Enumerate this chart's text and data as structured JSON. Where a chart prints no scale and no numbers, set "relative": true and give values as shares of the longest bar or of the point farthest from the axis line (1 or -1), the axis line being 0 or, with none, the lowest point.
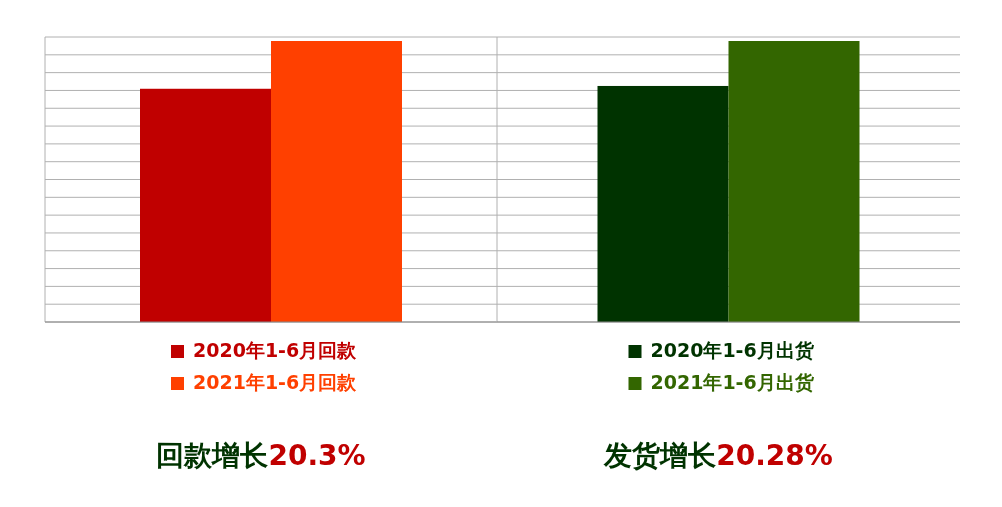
{
  "chart_data": [
    {
      "type": "bar",
      "relative": true,
      "categories": [
        null
      ],
      "grid": true,
      "legend": "bottom",
      "annotations": [
        "回款增长20.3%"
      ],
      "series": [
        {
          "name": "2020年1-6月回款",
          "color": "#c00000",
          "values": [
            0.83
          ]
        },
        {
          "name": "2021年1-6月回款",
          "color": "#ff4000",
          "values": [
            1
          ]
        }
      ]
    },
    {
      "type": "bar",
      "relative": true,
      "categories": [
        null
      ],
      "grid": true,
      "legend": "bottom",
      "annotations": [
        "发货增长20.28%"
      ],
      "series": [
        {
          "name": "2020年1-6月出货",
          "color": "#003300",
          "values": [
            0.84
          ]
        },
        {
          "name": "2021年1-6月出货",
          "color": "#336600",
          "values": [
            1
          ]
        }
      ]
    }
  ]
}
